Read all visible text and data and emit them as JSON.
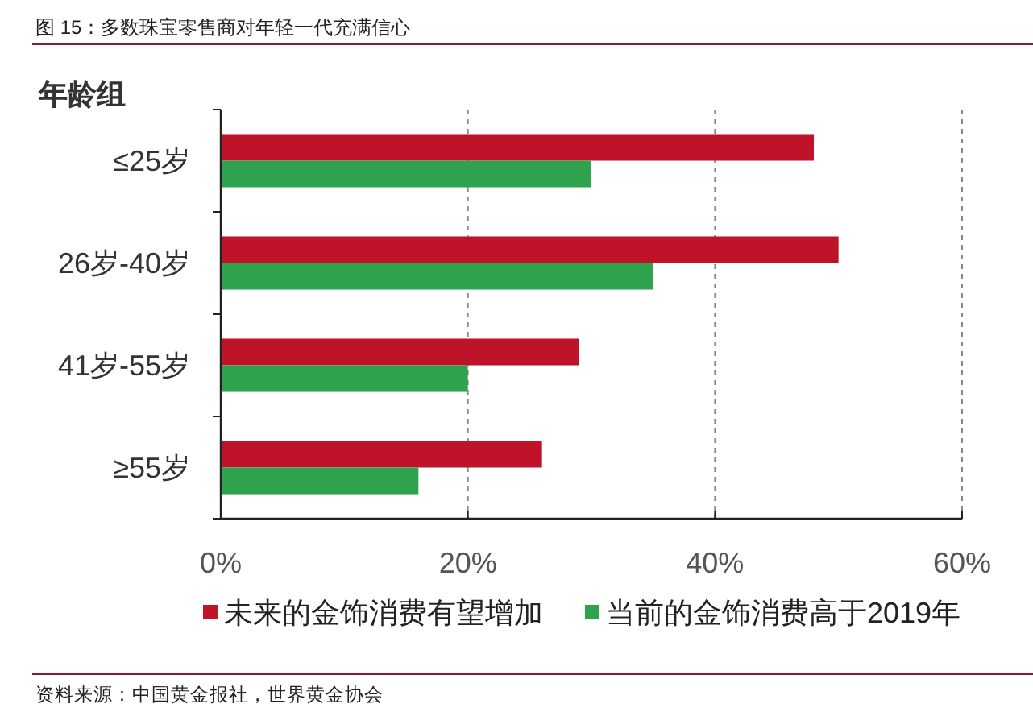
{
  "chart_data": {
    "type": "bar",
    "orientation": "horizontal",
    "title": "图 15：多数珠宝零售商对年轻一代充满信心",
    "ylabel": "年龄组",
    "categories": [
      "≤25岁",
      "26岁-40岁",
      "41岁-55岁",
      "≥55岁"
    ],
    "series": [
      {
        "name": "未来的金饰消费有望增加",
        "color": "#be1329",
        "values": [
          48,
          50,
          29,
          26
        ]
      },
      {
        "name": "当前的金饰消费高于2019年",
        "color": "#2ea24c",
        "values": [
          30,
          35,
          20,
          16
        ]
      }
    ],
    "xlim": [
      0,
      60
    ],
    "xticks": [
      {
        "value": 0,
        "label": "0%"
      },
      {
        "value": 20,
        "label": "20%"
      },
      {
        "value": 40,
        "label": "40%"
      },
      {
        "value": 60,
        "label": "60%"
      }
    ],
    "grid": "x",
    "legend": "bottom",
    "annotations": [
      "资料来源：中国黄金报社，世界黄金协会"
    ]
  }
}
